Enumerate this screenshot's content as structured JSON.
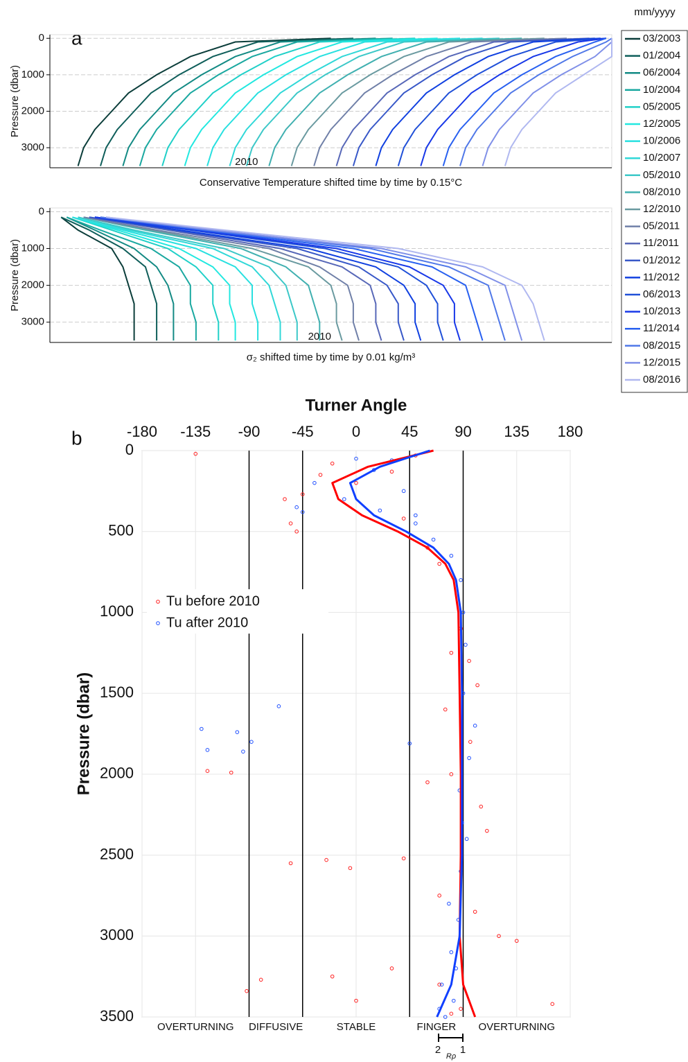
{
  "panel_labels": [
    "a",
    "b"
  ],
  "chart_data": [
    {
      "type": "profile",
      "y_label": "Pressure (dbar)",
      "x_label": "Conservative Temperature shifted time by time by 0.15°C",
      "annotation": "2010",
      "legend_title": "mm/yyyy",
      "xlim": [
        0,
        100
      ],
      "ylim": [
        -100,
        3550
      ],
      "yticks": [
        0,
        1000,
        2000,
        3000
      ],
      "grid": true,
      "pressure": [
        0,
        100,
        500,
        1000,
        1500,
        2000,
        2500,
        3000,
        3500
      ],
      "series": [
        {
          "name": "03/2003",
          "color": "#0b3d3a",
          "values": [
            50,
            33,
            25,
            19,
            14,
            11,
            8,
            6,
            5
          ]
        },
        {
          "name": "01/2004",
          "color": "#0f5e5a",
          "values": [
            54,
            37,
            29,
            23,
            18,
            15,
            12,
            10,
            9
          ]
        },
        {
          "name": "06/2004",
          "color": "#138a84",
          "values": [
            58,
            41,
            33,
            27,
            22,
            19,
            16,
            14,
            13
          ]
        },
        {
          "name": "10/2004",
          "color": "#1aa8a0",
          "values": [
            61,
            44,
            36,
            30,
            25,
            22,
            19,
            17,
            16
          ]
        },
        {
          "name": "05/2005",
          "color": "#20d0c8",
          "values": [
            65,
            48,
            40,
            34,
            29,
            26,
            23,
            21,
            20
          ]
        },
        {
          "name": "12/2005",
          "color": "#22e8e0",
          "values": [
            69,
            52,
            44,
            38,
            33,
            30,
            27,
            25,
            24
          ]
        },
        {
          "name": "10/2006",
          "color": "#28e0e0",
          "values": [
            73,
            56,
            48,
            42,
            37,
            34,
            31,
            29,
            28
          ]
        },
        {
          "name": "10/2007",
          "color": "#30d8d8",
          "values": [
            77,
            60,
            52,
            46,
            41,
            38,
            35,
            33,
            32
          ]
        },
        {
          "name": "05/2010",
          "color": "#3cc8c8",
          "values": [
            80,
            63,
            55,
            49,
            44,
            41,
            38,
            36,
            35
          ]
        },
        {
          "name": "08/2010",
          "color": "#40b0b0",
          "values": [
            84,
            67,
            59,
            53,
            48,
            45,
            42,
            40,
            39
          ]
        },
        {
          "name": "12/2010",
          "color": "#6a9aa0",
          "values": [
            88,
            71,
            63,
            57,
            52,
            49,
            46,
            44,
            43
          ]
        },
        {
          "name": "05/2011",
          "color": "#7080a8",
          "values": [
            92,
            75,
            67,
            61,
            56,
            53,
            50,
            48,
            47
          ]
        },
        {
          "name": "11/2011",
          "color": "#5868b8",
          "values": [
            96,
            79,
            71,
            65,
            60,
            57,
            54,
            52,
            51
          ]
        },
        {
          "name": "01/2012",
          "color": "#3858c8",
          "values": [
            97,
            82,
            74,
            68,
            63,
            60,
            57,
            55,
            54
          ]
        },
        {
          "name": "11/2012",
          "color": "#1040e0",
          "values": [
            98,
            86,
            78,
            72,
            67,
            64,
            61,
            59,
            58
          ]
        },
        {
          "name": "06/2013",
          "color": "#2050d8",
          "values": [
            99,
            90,
            82,
            76,
            71,
            68,
            65,
            63,
            62
          ]
        },
        {
          "name": "10/2013",
          "color": "#1838e8",
          "values": [
            99,
            94,
            86,
            80,
            75,
            72,
            69,
            67,
            66
          ]
        },
        {
          "name": "11/2014",
          "color": "#2860f0",
          "values": [
            99,
            97,
            90,
            84,
            79,
            76,
            73,
            71,
            70
          ]
        },
        {
          "name": "08/2015",
          "color": "#5078e8",
          "values": [
            100,
            99,
            93,
            87,
            82,
            79,
            76,
            74,
            73
          ]
        },
        {
          "name": "12/2015",
          "color": "#8090e8",
          "values": [
            100,
            100,
            97,
            91,
            86,
            83,
            80,
            78,
            77
          ]
        },
        {
          "name": "08/2016",
          "color": "#b0b8f0",
          "values": [
            100,
            100,
            100,
            95,
            90,
            87,
            84,
            82,
            81
          ]
        }
      ]
    },
    {
      "type": "profile",
      "y_label": "Pressure (dbar)",
      "x_label": "σ₂ shifted time by time by 0.01 kg/m³",
      "annotation": "2010",
      "xlim": [
        0,
        100
      ],
      "ylim": [
        -100,
        3550
      ],
      "yticks": [
        0,
        1000,
        2000,
        3000
      ],
      "grid": true,
      "pressure": [
        150,
        500,
        1000,
        1500,
        2000,
        2500,
        3000,
        3500
      ],
      "series": [
        {
          "color": "#0b3d3a",
          "values": [
            2,
            5,
            11,
            13,
            14,
            15,
            15,
            15
          ]
        },
        {
          "color": "#0f5e5a",
          "values": [
            2,
            7,
            13,
            17,
            18,
            19,
            19,
            19
          ]
        },
        {
          "color": "#138a84",
          "values": [
            3,
            8,
            15,
            19,
            21,
            22,
            22,
            22
          ]
        },
        {
          "color": "#1aa8a0",
          "values": [
            3,
            9,
            18,
            23,
            25,
            25,
            26,
            26
          ]
        },
        {
          "color": "#20d0c8",
          "values": [
            4,
            11,
            21,
            26,
            29,
            29,
            30,
            30
          ]
        },
        {
          "color": "#22e8e0",
          "values": [
            4,
            12,
            23,
            29,
            32,
            32,
            33,
            33
          ]
        },
        {
          "color": "#28e0e0",
          "values": [
            4,
            13,
            26,
            33,
            36,
            36,
            37,
            37
          ]
        },
        {
          "color": "#30d8d8",
          "values": [
            5,
            14,
            29,
            36,
            39,
            40,
            41,
            41
          ]
        },
        {
          "color": "#3cc8c8",
          "values": [
            5,
            15,
            31,
            39,
            42,
            43,
            44,
            44
          ]
        },
        {
          "color": "#40b0b0",
          "values": [
            6,
            17,
            34,
            42,
            46,
            47,
            48,
            48
          ]
        },
        {
          "color": "#6a9aa0",
          "values": [
            6,
            18,
            36,
            46,
            50,
            51,
            51,
            52
          ]
        },
        {
          "color": "#7080a8",
          "values": [
            6,
            19,
            39,
            48,
            53,
            54,
            54,
            55
          ]
        },
        {
          "color": "#5868b8",
          "values": [
            7,
            21,
            41,
            52,
            57,
            58,
            58,
            59
          ]
        },
        {
          "color": "#3858c8",
          "values": [
            7,
            22,
            44,
            55,
            60,
            62,
            62,
            63
          ]
        },
        {
          "color": "#1040e0",
          "values": [
            8,
            23,
            46,
            58,
            63,
            65,
            65,
            66
          ]
        },
        {
          "color": "#2050d8",
          "values": [
            8,
            25,
            49,
            62,
            67,
            69,
            69,
            70
          ]
        },
        {
          "color": "#1838e8",
          "values": [
            8,
            26,
            51,
            64,
            70,
            72,
            72,
            73
          ]
        },
        {
          "color": "#2860f0",
          "values": [
            9,
            27,
            54,
            68,
            74,
            75,
            76,
            77
          ]
        },
        {
          "color": "#5078e8",
          "values": [
            9,
            28,
            57,
            71,
            78,
            79,
            80,
            81
          ]
        },
        {
          "color": "#8090e8",
          "values": [
            10,
            29,
            59,
            74,
            81,
            82,
            83,
            84
          ]
        },
        {
          "color": "#b0b8f0",
          "values": [
            10,
            31,
            62,
            77,
            84,
            86,
            87,
            88
          ]
        }
      ]
    },
    {
      "type": "scatter",
      "title": "Turner Angle",
      "y_label": "Pressure (dbar)",
      "xlim": [
        -180,
        180
      ],
      "xticks": [
        -180,
        -135,
        -90,
        -45,
        0,
        45,
        90,
        135,
        180
      ],
      "ylim": [
        0,
        3500
      ],
      "yticks": [
        0,
        500,
        1000,
        1500,
        2000,
        2500,
        3000,
        3500
      ],
      "grid": true,
      "regime_lines": [
        -90,
        -45,
        45,
        90
      ],
      "regime_labels": [
        "OVERTURNING",
        "DIFFUSIVE",
        "STABLE",
        "FINGER",
        "OVERTURNING"
      ],
      "rho_scale": {
        "left": "2",
        "right": "1",
        "label": "Rρ"
      },
      "series": [
        {
          "name": "Tu before 2010",
          "color": "#ff2020",
          "x": [
            -135,
            -60,
            -55,
            -50,
            -45,
            -30,
            -20,
            0,
            30,
            50,
            40,
            60,
            70,
            88,
            95,
            80,
            102,
            75,
            96,
            60,
            80,
            105,
            110,
            40,
            -25,
            -55,
            -5,
            70,
            100,
            120,
            135,
            30,
            -20,
            -80,
            70,
            0,
            165,
            -92,
            -125,
            -105,
            80,
            88
          ],
          "y": [
            20,
            300,
            450,
            500,
            270,
            150,
            80,
            200,
            130,
            30,
            420,
            600,
            700,
            1100,
            1300,
            1250,
            1450,
            1600,
            1800,
            2050,
            2000,
            2200,
            2350,
            2520,
            2530,
            2550,
            2580,
            2750,
            2850,
            3000,
            3030,
            3200,
            3250,
            3270,
            3300,
            3400,
            3420,
            3340,
            1980,
            1990,
            3480,
            3450
          ]
        },
        {
          "name": "Tu after 2010",
          "color": "#2050ff",
          "x": [
            -130,
            -125,
            -100,
            -95,
            -88,
            -65,
            45,
            -50,
            -35,
            -10,
            15,
            30,
            40,
            50,
            65,
            80,
            88,
            90,
            92,
            100,
            95,
            89,
            88,
            86,
            80,
            72,
            70,
            75,
            82,
            90,
            50,
            -45,
            0,
            20,
            84,
            78,
            87,
            93
          ],
          "y": [
            1720,
            1850,
            1740,
            1860,
            1800,
            1580,
            1810,
            350,
            200,
            300,
            120,
            60,
            250,
            450,
            550,
            650,
            800,
            1000,
            1200,
            1700,
            1900,
            2300,
            2600,
            2900,
            3100,
            3300,
            3450,
            3500,
            3400,
            1500,
            400,
            380,
            50,
            370,
            3200,
            2800,
            2100,
            2400
          ]
        }
      ],
      "curve_pressure": [
        0,
        100,
        200,
        300,
        400,
        500,
        600,
        700,
        800,
        1000,
        1500,
        2000,
        2500,
        3000,
        3300,
        3500
      ],
      "curves": [
        {
          "color": "#ff0000",
          "values": [
            65,
            10,
            -20,
            -15,
            5,
            35,
            60,
            75,
            82,
            86,
            87,
            88,
            88,
            87,
            90,
            100
          ]
        },
        {
          "color": "#1040ff",
          "values": [
            62,
            20,
            -5,
            0,
            15,
            42,
            65,
            78,
            84,
            88,
            89,
            89,
            89,
            87,
            80,
            68
          ]
        }
      ]
    }
  ]
}
